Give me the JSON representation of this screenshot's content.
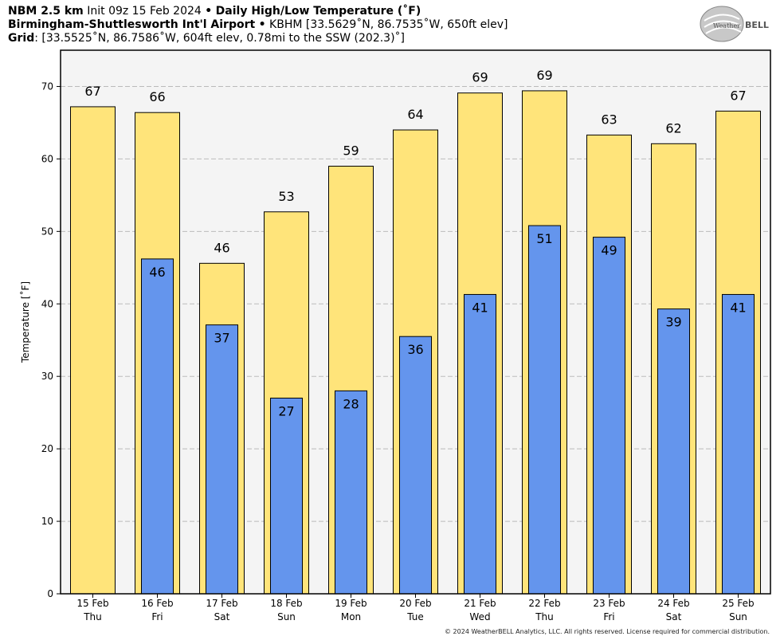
{
  "header": {
    "model": "NBM 2.5 km",
    "init": "Init 09z 15 Feb 2024",
    "sep": "•",
    "product": "Daily High/Low Temperature (˚F)",
    "station": "Birmingham-Shuttlesworth Int'l Airport",
    "station_info": "KBHM [33.5629˚N, 86.7535˚W, 650ft elev]",
    "grid_label": "Grid",
    "grid_info": ": [33.5525˚N, 86.7586˚W, 604ft elev, 0.78mi to the SSW (202.3)˚]"
  },
  "logo": {
    "text_left": "Weather",
    "text_right": "BELL"
  },
  "copyright": "© 2024 WeatherBELL Analytics, LLC. All rights reserved. License required for commercial distribution.",
  "chart_data": {
    "type": "bar",
    "ylabel": "Temperature [˚F]",
    "ylim": [
      0,
      75
    ],
    "yticks": [
      0,
      10,
      20,
      30,
      40,
      50,
      60,
      70
    ],
    "grid": true,
    "categories": [
      "15 Feb",
      "16 Feb",
      "17 Feb",
      "18 Feb",
      "19 Feb",
      "20 Feb",
      "21 Feb",
      "22 Feb",
      "23 Feb",
      "24 Feb",
      "25 Feb"
    ],
    "weekdays": [
      "Thu",
      "Fri",
      "Sat",
      "Sun",
      "Mon",
      "Tue",
      "Wed",
      "Thu",
      "Fri",
      "Sat",
      "Sun"
    ],
    "series": [
      {
        "role": "high",
        "color": "#ffe47a",
        "values": [
          67.2,
          66.4,
          45.6,
          52.7,
          59.0,
          64.0,
          69.1,
          69.4,
          63.3,
          62.1,
          66.6
        ],
        "labels": [
          "67",
          "66",
          "46",
          "53",
          "59",
          "64",
          "69",
          "69",
          "63",
          "62",
          "67"
        ]
      },
      {
        "role": "low",
        "color": "#6495ed",
        "values": [
          null,
          46.2,
          37.1,
          27.0,
          28.0,
          35.5,
          41.3,
          50.8,
          49.2,
          39.3,
          41.3
        ],
        "labels": [
          "",
          "46",
          "37",
          "27",
          "28",
          "36",
          "41",
          "51",
          "49",
          "39",
          "41"
        ]
      }
    ],
    "colors": {
      "plot_bg": "#f4f4f4",
      "grid": "#bbbbbb"
    }
  }
}
